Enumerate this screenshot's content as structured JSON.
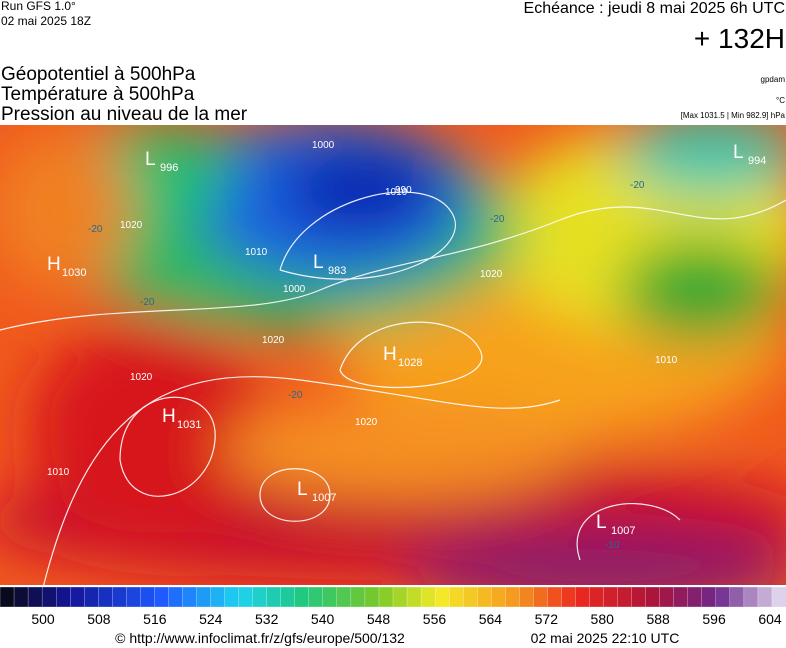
{
  "header": {
    "run": "Run GFS 1.0°",
    "run_date": "02 mai 2025 18Z",
    "echeance": "Echéance : jeudi 8 mai 2025 6h UTC",
    "hour": "+ 132H",
    "layers": [
      "Géopotentiel à 500hPa",
      "Température à 500hPa",
      "Pression au niveau de la mer"
    ],
    "unit_geo": "gpdam",
    "unit_temp": "°C",
    "range": "[Max 1031.5 | Min 982.9] hPa"
  },
  "map": {
    "centers": [
      {
        "letter": "L",
        "value": "996"
      },
      {
        "letter": "H",
        "value": "1030"
      },
      {
        "letter": "L",
        "value": "983"
      },
      {
        "letter": "H",
        "value": "1028"
      },
      {
        "letter": "H",
        "value": "1031"
      },
      {
        "letter": "L",
        "value": "1007"
      },
      {
        "letter": "L",
        "value": "1007"
      },
      {
        "letter": "L",
        "value": "994"
      }
    ],
    "isobar_labels": [
      "1000",
      "1010",
      "1010",
      "990",
      "1000",
      "1020",
      "1020",
      "1020",
      "1020",
      "1020",
      "1010",
      "1010"
    ],
    "temp_labels": [
      "-20",
      "-20",
      "-20",
      "-20",
      "-20",
      "-10"
    ]
  },
  "colorbar": {
    "labels": [
      500,
      508,
      516,
      524,
      532,
      540,
      548,
      556,
      564,
      572,
      580,
      588,
      596,
      604
    ]
  },
  "footer": {
    "url": "© http://www.infoclimat.fr/z/gfs/europe/500/132",
    "date": "02 mai 2025 22:10 UTC"
  }
}
